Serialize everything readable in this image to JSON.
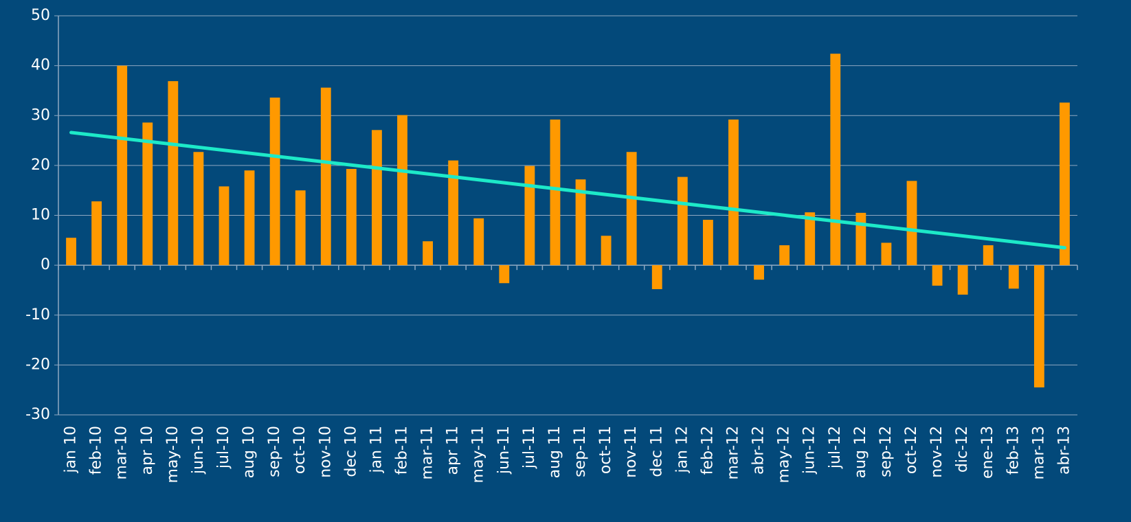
{
  "chart_data": {
    "type": "bar",
    "categories": [
      "jan 10",
      "feb-10",
      "mar-10",
      "apr 10",
      "may-10",
      "jun-10",
      "jul-10",
      "aug 10",
      "sep-10",
      "oct-10",
      "nov-10",
      "dec 10",
      "jan 11",
      "feb-11",
      "mar-11",
      "apr 11",
      "may-11",
      "jun-11",
      "jul-11",
      "aug 11",
      "sep-11",
      "oct-11",
      "nov-11",
      "dec 11",
      "jan 12",
      "feb-12",
      "mar-12",
      "abr-12",
      "may-12",
      "jun-12",
      "jul-12",
      "aug 12",
      "sep-12",
      "oct-12",
      "nov-12",
      "dic-12",
      "ene-13",
      "feb-13",
      "mar-13",
      "abr-13"
    ],
    "values": [
      5.5,
      12.8,
      40,
      28.6,
      36.9,
      22.7,
      15.8,
      19,
      33.6,
      15,
      35.6,
      19.3,
      27.1,
      30.1,
      4.8,
      21,
      9.4,
      -3.6,
      19.9,
      29.2,
      17.2,
      5.9,
      22.7,
      -4.8,
      17.7,
      9.1,
      29.2,
      -2.9,
      4,
      10.6,
      42.4,
      10.5,
      4.5,
      16.9,
      -4.1,
      -5.9,
      4,
      -4.7,
      -24.5,
      32.6
    ],
    "color": "#ff9900",
    "trendline": {
      "color": "#1de9c8",
      "values": [
        26.6,
        3.5
      ]
    },
    "ylim": [
      -30,
      50
    ],
    "yticks": [
      -30,
      -20,
      -10,
      0,
      10,
      20,
      30,
      40,
      50
    ],
    "grid": true
  }
}
